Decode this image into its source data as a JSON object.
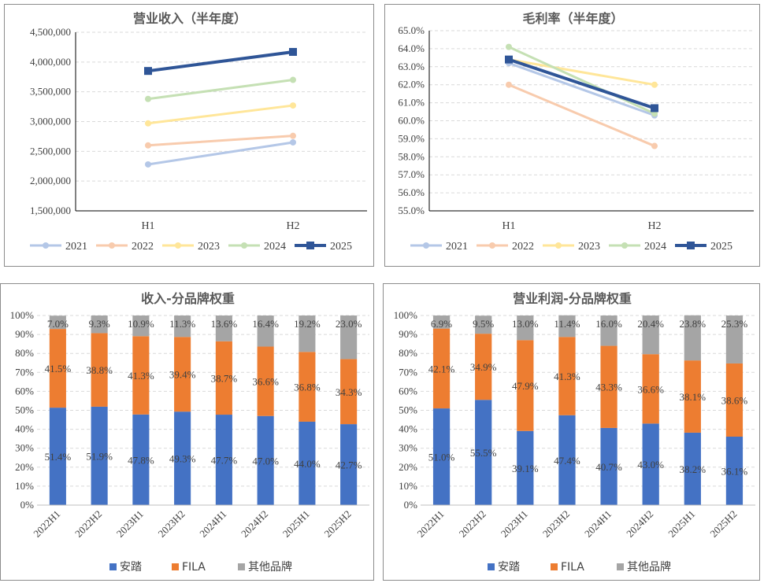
{
  "chart_data": [
    {
      "id": "revenue",
      "type": "line",
      "title": "营业收入（半年度）",
      "categories": [
        "H1",
        "H2"
      ],
      "ylim": [
        1500000,
        4500000
      ],
      "ystep": 500000,
      "yticks": [
        "1,500,000",
        "2,000,000",
        "2,500,000",
        "3,000,000",
        "3,500,000",
        "4,000,000",
        "4,500,000"
      ],
      "series": [
        {
          "name": "2021",
          "values": [
            2280000,
            2650000
          ],
          "color": "#b4c7e7"
        },
        {
          "name": "2022",
          "values": [
            2600000,
            2760000
          ],
          "color": "#f8cbad"
        },
        {
          "name": "2023",
          "values": [
            2970000,
            3270000
          ],
          "color": "#ffe699"
        },
        {
          "name": "2024",
          "values": [
            3380000,
            3700000
          ],
          "color": "#c5e0b4"
        },
        {
          "name": "2025",
          "values": [
            3850000,
            4170000
          ],
          "color": "#2f5597"
        }
      ]
    },
    {
      "id": "gross_margin",
      "type": "line",
      "title": "毛利率（半年度）",
      "categories": [
        "H1",
        "H2"
      ],
      "ylim": [
        55,
        65
      ],
      "ystep": 1,
      "yticks": [
        "55.0%",
        "56.0%",
        "57.0%",
        "58.0%",
        "59.0%",
        "60.0%",
        "61.0%",
        "62.0%",
        "63.0%",
        "64.0%",
        "65.0%"
      ],
      "series": [
        {
          "name": "2021",
          "values": [
            63.2,
            60.3
          ],
          "color": "#b4c7e7"
        },
        {
          "name": "2022",
          "values": [
            62.0,
            58.6
          ],
          "color": "#f8cbad"
        },
        {
          "name": "2023",
          "values": [
            63.4,
            62.0
          ],
          "color": "#ffe699"
        },
        {
          "name": "2024",
          "values": [
            64.1,
            60.4
          ],
          "color": "#c5e0b4"
        },
        {
          "name": "2025",
          "values": [
            63.4,
            60.7
          ],
          "color": "#2f5597"
        }
      ]
    },
    {
      "id": "revenue_brand",
      "type": "bar",
      "stacked": true,
      "title": "收入-分品牌权重",
      "categories": [
        "2022H1",
        "2022H2",
        "2023H1",
        "2023H2",
        "2024H1",
        "2024H2",
        "2025H1",
        "2025H2"
      ],
      "ylim": [
        0,
        100
      ],
      "ystep": 10,
      "yticks": [
        "0%",
        "10%",
        "20%",
        "30%",
        "40%",
        "50%",
        "60%",
        "70%",
        "80%",
        "90%",
        "100%"
      ],
      "series": [
        {
          "name": "安踏",
          "values": [
            51.4,
            51.9,
            47.8,
            49.3,
            47.7,
            47.0,
            44.0,
            42.7
          ],
          "labels": [
            "51.4%",
            "51.9%",
            "47.8%",
            "49.3%",
            "47.7%",
            "47.0%",
            "44.0%",
            "42.7%"
          ],
          "color": "#4472c4"
        },
        {
          "name": "FILA",
          "values": [
            41.5,
            38.8,
            41.3,
            39.4,
            38.7,
            36.6,
            36.8,
            34.3
          ],
          "labels": [
            "41.5%",
            "38.8%",
            "41.3%",
            "39.4%",
            "38.7%",
            "36.6%",
            "36.8%",
            "34.3%"
          ],
          "color": "#ed7d31"
        },
        {
          "name": "其他品牌",
          "values": [
            7.0,
            9.3,
            10.9,
            11.3,
            13.6,
            16.4,
            19.2,
            23.0
          ],
          "labels": [
            "7.0%",
            "9.3%",
            "10.9%",
            "11.3%",
            "13.6%",
            "16.4%",
            "19.2%",
            "23.0%"
          ],
          "color": "#a5a5a5"
        }
      ]
    },
    {
      "id": "op_profit_brand",
      "type": "bar",
      "stacked": true,
      "title": "营业利润-分品牌权重",
      "categories": [
        "2022H1",
        "2022H2",
        "2023H1",
        "2023H2",
        "2024H1",
        "2024H2",
        "2025H1",
        "2025H2"
      ],
      "ylim": [
        0,
        100
      ],
      "ystep": 10,
      "yticks": [
        "0%",
        "10%",
        "20%",
        "30%",
        "40%",
        "50%",
        "60%",
        "70%",
        "80%",
        "90%",
        "100%"
      ],
      "series": [
        {
          "name": "安踏",
          "values": [
            51.0,
            55.5,
            39.1,
            47.4,
            40.7,
            43.0,
            38.2,
            36.1
          ],
          "labels": [
            "51.0%",
            "55.5%",
            "39.1%",
            "47.4%",
            "40.7%",
            "43.0%",
            "38.2%",
            "36.1%"
          ],
          "color": "#4472c4"
        },
        {
          "name": "FILA",
          "values": [
            42.1,
            34.9,
            47.9,
            41.3,
            43.3,
            36.6,
            38.1,
            38.6
          ],
          "labels": [
            "42.1%",
            "34.9%",
            "47.9%",
            "41.3%",
            "43.3%",
            "36.6%",
            "38.1%",
            "38.6%"
          ],
          "color": "#ed7d31"
        },
        {
          "name": "其他品牌",
          "values": [
            6.9,
            9.5,
            13.0,
            11.4,
            16.0,
            20.4,
            23.8,
            25.3
          ],
          "labels": [
            "6.9%",
            "9.5%",
            "13.0%",
            "11.4%",
            "16.0%",
            "20.4%",
            "23.8%",
            "25.3%"
          ],
          "color": "#a5a5a5"
        }
      ]
    }
  ]
}
